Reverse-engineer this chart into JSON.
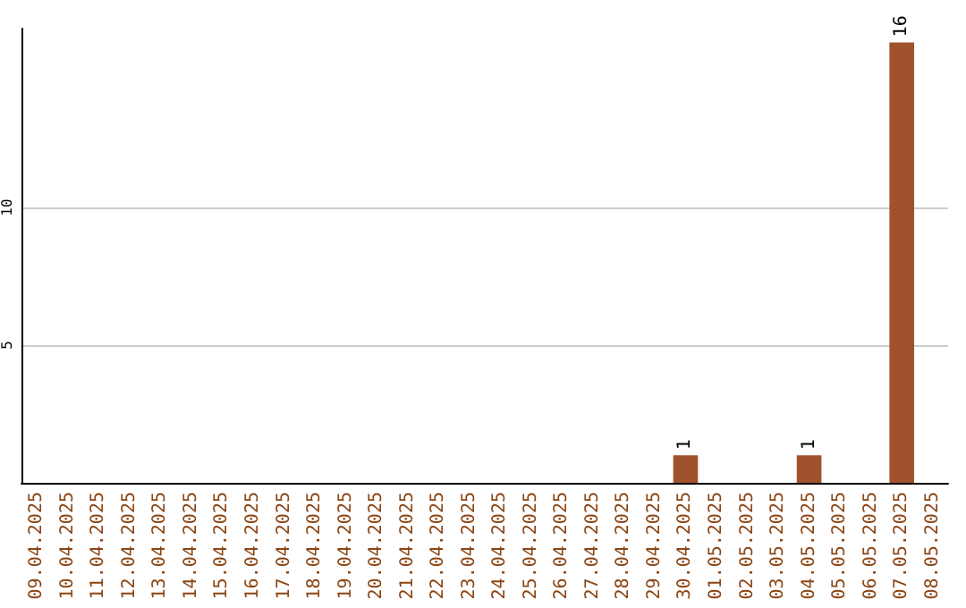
{
  "chart_data": {
    "type": "bar",
    "categories": [
      "09.04.2025",
      "10.04.2025",
      "11.04.2025",
      "12.04.2025",
      "13.04.2025",
      "14.04.2025",
      "15.04.2025",
      "16.04.2025",
      "17.04.2025",
      "18.04.2025",
      "19.04.2025",
      "20.04.2025",
      "21.04.2025",
      "22.04.2025",
      "23.04.2025",
      "24.04.2025",
      "25.04.2025",
      "26.04.2025",
      "27.04.2025",
      "28.04.2025",
      "29.04.2025",
      "30.04.2025",
      "01.05.2025",
      "02.05.2025",
      "03.05.2025",
      "04.05.2025",
      "05.05.2025",
      "06.05.2025",
      "07.05.2025",
      "08.05.2025"
    ],
    "values": [
      0,
      0,
      0,
      0,
      0,
      0,
      0,
      0,
      0,
      0,
      0,
      0,
      0,
      0,
      0,
      0,
      0,
      0,
      0,
      0,
      0,
      1,
      0,
      0,
      0,
      1,
      0,
      0,
      16,
      0
    ],
    "value_labels": [
      null,
      null,
      null,
      null,
      null,
      null,
      null,
      null,
      null,
      null,
      null,
      null,
      null,
      null,
      null,
      null,
      null,
      null,
      null,
      null,
      null,
      "1",
      null,
      null,
      null,
      "1",
      null,
      null,
      "16",
      null
    ],
    "color": "#a0522d",
    "ylim": [
      0,
      16.5
    ],
    "yticks": [
      5,
      10
    ],
    "grid": "y"
  }
}
